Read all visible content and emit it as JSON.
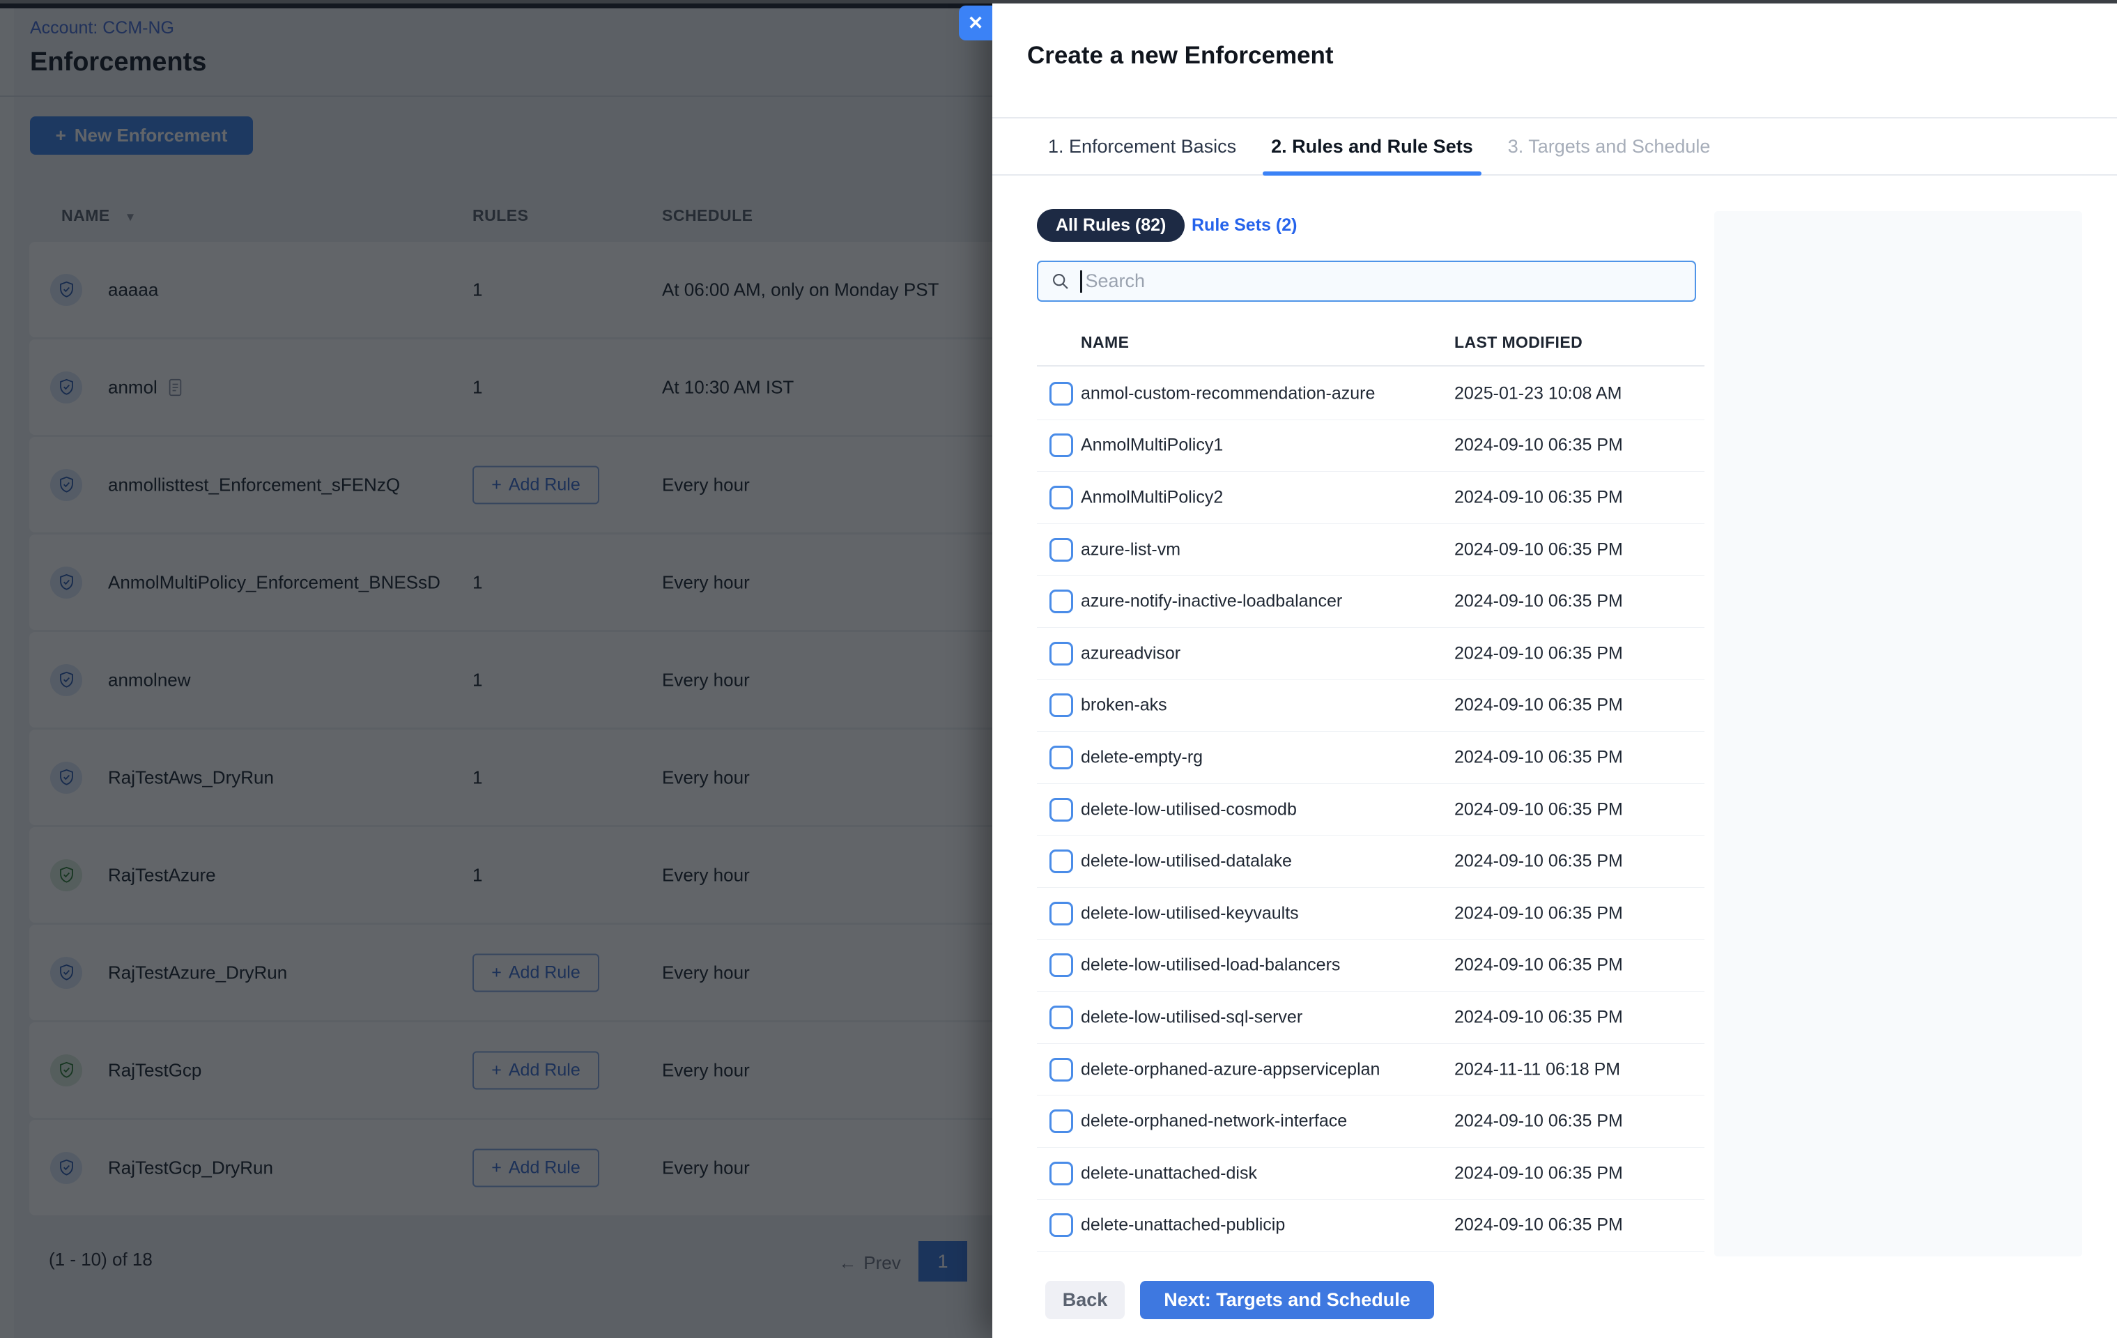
{
  "page": {
    "account_label": "Account: CCM-NG",
    "title": "Enforcements",
    "new_enforcement": {
      "plus_icon": "+",
      "label": "New Enforcement"
    },
    "table": {
      "columns": {
        "name": "NAME",
        "rules": "RULES",
        "schedule": "SCHEDULE"
      },
      "sort_caret_icon": "▼",
      "add_rule": {
        "plus_icon": "+",
        "label": "Add Rule"
      },
      "rows": [
        {
          "name": "aaaaa",
          "icon_color": "blue",
          "rules": "1",
          "schedule": "At 06:00 AM, only on Monday PST",
          "doc_icon": false
        },
        {
          "name": "anmol",
          "icon_color": "blue",
          "rules": "1",
          "schedule": "At 10:30 AM IST",
          "doc_icon": true
        },
        {
          "name": "anmollisttest_Enforcement_sFENzQ",
          "icon_color": "blue",
          "rules": "add",
          "schedule": "Every hour",
          "doc_icon": false
        },
        {
          "name": "AnmolMultiPolicy_Enforcement_BNESsD",
          "icon_color": "blue",
          "rules": "1",
          "schedule": "Every hour",
          "doc_icon": false
        },
        {
          "name": "anmolnew",
          "icon_color": "blue",
          "rules": "1",
          "schedule": "Every hour",
          "doc_icon": false
        },
        {
          "name": "RajTestAws_DryRun",
          "icon_color": "blue",
          "rules": "1",
          "schedule": "Every hour",
          "doc_icon": false
        },
        {
          "name": "RajTestAzure",
          "icon_color": "green",
          "rules": "1",
          "schedule": "Every hour",
          "doc_icon": false
        },
        {
          "name": "RajTestAzure_DryRun",
          "icon_color": "blue",
          "rules": "add",
          "schedule": "Every hour",
          "doc_icon": false
        },
        {
          "name": "RajTestGcp",
          "icon_color": "green",
          "rules": "add",
          "schedule": "Every hour",
          "doc_icon": false
        },
        {
          "name": "RajTestGcp_DryRun",
          "icon_color": "blue",
          "rules": "add",
          "schedule": "Every hour",
          "doc_icon": false
        }
      ]
    },
    "pagination": {
      "summary": "(1 - 10) of 18",
      "prev_arrow_icon": "←",
      "prev_label": "Prev",
      "page": "1"
    }
  },
  "modal": {
    "close_icon": "✕",
    "title": "Create a new Enforcement",
    "tabs": [
      {
        "label": "1. Enforcement Basics",
        "state": "normal"
      },
      {
        "label": "2. Rules and Rule Sets",
        "state": "active"
      },
      {
        "label": "3. Targets and Schedule",
        "state": "disabled"
      }
    ],
    "filters": {
      "all_rules_label": "All Rules (82)",
      "rule_sets_label": "Rule Sets (2)"
    },
    "search": {
      "placeholder": "Search"
    },
    "list": {
      "columns": {
        "name": "NAME",
        "last_modified": "LAST MODIFIED"
      },
      "rows": [
        {
          "name": "anmol-custom-recommendation-azure",
          "last_modified": "2025-01-23 10:08 AM"
        },
        {
          "name": "AnmolMultiPolicy1",
          "last_modified": "2024-09-10 06:35 PM"
        },
        {
          "name": "AnmolMultiPolicy2",
          "last_modified": "2024-09-10 06:35 PM"
        },
        {
          "name": "azure-list-vm",
          "last_modified": "2024-09-10 06:35 PM"
        },
        {
          "name": "azure-notify-inactive-loadbalancer",
          "last_modified": "2024-09-10 06:35 PM"
        },
        {
          "name": "azureadvisor",
          "last_modified": "2024-09-10 06:35 PM"
        },
        {
          "name": "broken-aks",
          "last_modified": "2024-09-10 06:35 PM"
        },
        {
          "name": "delete-empty-rg",
          "last_modified": "2024-09-10 06:35 PM"
        },
        {
          "name": "delete-low-utilised-cosmodb",
          "last_modified": "2024-09-10 06:35 PM"
        },
        {
          "name": "delete-low-utilised-datalake",
          "last_modified": "2024-09-10 06:35 PM"
        },
        {
          "name": "delete-low-utilised-keyvaults",
          "last_modified": "2024-09-10 06:35 PM"
        },
        {
          "name": "delete-low-utilised-load-balancers",
          "last_modified": "2024-09-10 06:35 PM"
        },
        {
          "name": "delete-low-utilised-sql-server",
          "last_modified": "2024-09-10 06:35 PM"
        },
        {
          "name": "delete-orphaned-azure-appserviceplan",
          "last_modified": "2024-11-11 06:18 PM"
        },
        {
          "name": "delete-orphaned-network-interface",
          "last_modified": "2024-09-10 06:35 PM"
        },
        {
          "name": "delete-unattached-disk",
          "last_modified": "2024-09-10 06:35 PM"
        },
        {
          "name": "delete-unattached-publicip",
          "last_modified": "2024-09-10 06:35 PM"
        }
      ]
    },
    "back_label": "Back",
    "next_label": "Next: Targets and Schedule"
  },
  "colors": {
    "accent_blue": "#3b82f6",
    "primary_button_blue": "#3e78e0",
    "pill_navy": "#1d2a44",
    "link_blue": "#2563eb",
    "shield_blue": "#2d5cb0",
    "shield_green": "#2f7d39",
    "overlay": "rgba(10,14,20,0.64)"
  }
}
